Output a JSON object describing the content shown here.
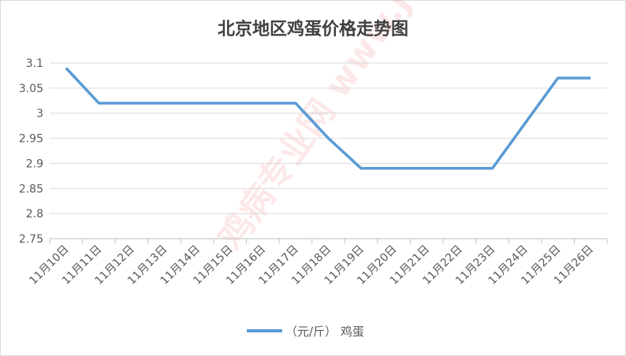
{
  "chart_data": {
    "type": "line",
    "title": "北京地区鸡蛋价格走势图",
    "categories": [
      "11月10日",
      "11月11日",
      "11月12日",
      "11月13日",
      "11月14日",
      "11月15日",
      "11月16日",
      "11月17日",
      "11月18日",
      "11月19日",
      "11月20日",
      "11月21日",
      "11月22日",
      "11月23日",
      "11月24日",
      "11月25日",
      "11月26日"
    ],
    "series": [
      {
        "name": "（元/斤） 鸡蛋",
        "color": "#5b9bd5",
        "values": [
          3.09,
          3.02,
          3.02,
          3.02,
          3.02,
          3.02,
          3.02,
          3.02,
          2.95,
          2.89,
          2.89,
          2.89,
          2.89,
          2.89,
          2.98,
          3.07,
          3.07
        ]
      }
    ],
    "yticks": [
      "2.75",
      "2.8",
      "2.85",
      "2.9",
      "2.95",
      "3",
      "3.05",
      "3.1"
    ],
    "ylim": [
      2.75,
      3.1
    ],
    "grid": true,
    "legend_position": "bottom",
    "watermark": "鸡病专业网 www.jbzyw.com"
  }
}
